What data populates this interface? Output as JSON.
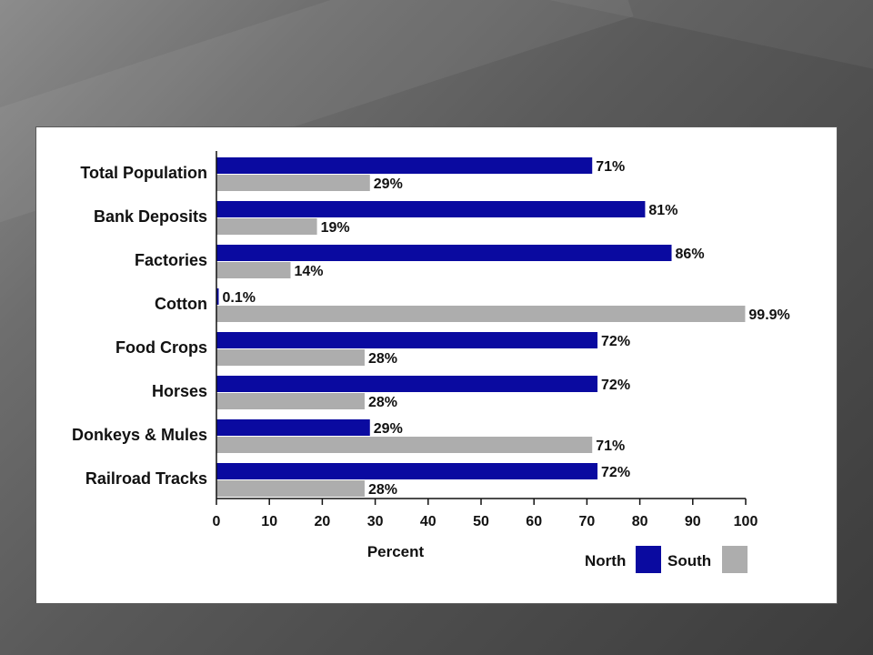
{
  "chart_data": {
    "type": "bar",
    "orientation": "horizontal",
    "categories": [
      "Total Population",
      "Bank Deposits",
      "Factories",
      "Cotton",
      "Food Crops",
      "Horses",
      "Donkeys & Mules",
      "Railroad Tracks"
    ],
    "series": [
      {
        "name": "North",
        "color": "#0a0aa0",
        "values": [
          71,
          81,
          86,
          0.1,
          72,
          72,
          29,
          72
        ],
        "labels": [
          "71%",
          "81%",
          "86%",
          "0.1%",
          "72%",
          "72%",
          "29%",
          "72%"
        ]
      },
      {
        "name": "South",
        "color": "#adadad",
        "values": [
          29,
          19,
          14,
          99.9,
          28,
          28,
          71,
          28
        ],
        "labels": [
          "29%",
          "19%",
          "14%",
          "99.9%",
          "28%",
          "28%",
          "71%",
          "28%"
        ]
      }
    ],
    "xlabel": "Percent",
    "xlim": [
      0,
      100
    ],
    "xticks": [
      "0",
      "10",
      "20",
      "30",
      "40",
      "50",
      "60",
      "70",
      "80",
      "90",
      "100"
    ],
    "grid": false,
    "legend": "bottom-right"
  }
}
